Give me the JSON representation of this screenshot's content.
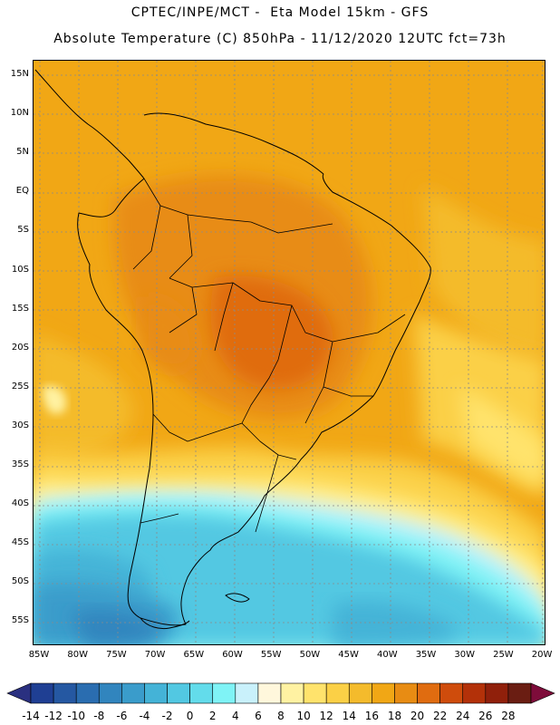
{
  "title_line1": "CPTEC/INPE/MCT -  Eta Model 15km - GFS",
  "title_line2": "Absolute Temperature (C) 850hPa - 11/12/2020 12UTC fct=73h",
  "lat_labels": [
    "15N",
    "10N",
    "5N",
    "EQ",
    "5S",
    "10S",
    "15S",
    "20S",
    "25S",
    "30S",
    "35S",
    "40S",
    "45S",
    "50S",
    "55S"
  ],
  "lon_labels": [
    "85W",
    "80W",
    "75W",
    "70W",
    "65W",
    "60W",
    "55W",
    "50W",
    "45W",
    "40W",
    "35W",
    "30W",
    "25W",
    "20W"
  ],
  "colorbar": {
    "labels": [
      "-14",
      "-12",
      "-10",
      "-8",
      "-6",
      "-4",
      "-2",
      "0",
      "2",
      "4",
      "6",
      "8",
      "10",
      "12",
      "14",
      "16",
      "18",
      "20",
      "22",
      "24",
      "26",
      "28"
    ],
    "colors": [
      "#1f3f93",
      "#2558a2",
      "#2a6db0",
      "#3185be",
      "#3a9ccb",
      "#44b3d7",
      "#52c8e2",
      "#63dceb",
      "#7ff3f6",
      "#c9f1fb",
      "#fff7dc",
      "#fff2a2",
      "#ffe36c",
      "#fbd046",
      "#f4bb2c",
      "#f1a715",
      "#e88c13",
      "#e06c10",
      "#cf4c0c",
      "#b33109",
      "#90200b",
      "#6a1d12"
    ],
    "under_color": "#2a3080",
    "over_color": "#7e0c3a"
  }
}
